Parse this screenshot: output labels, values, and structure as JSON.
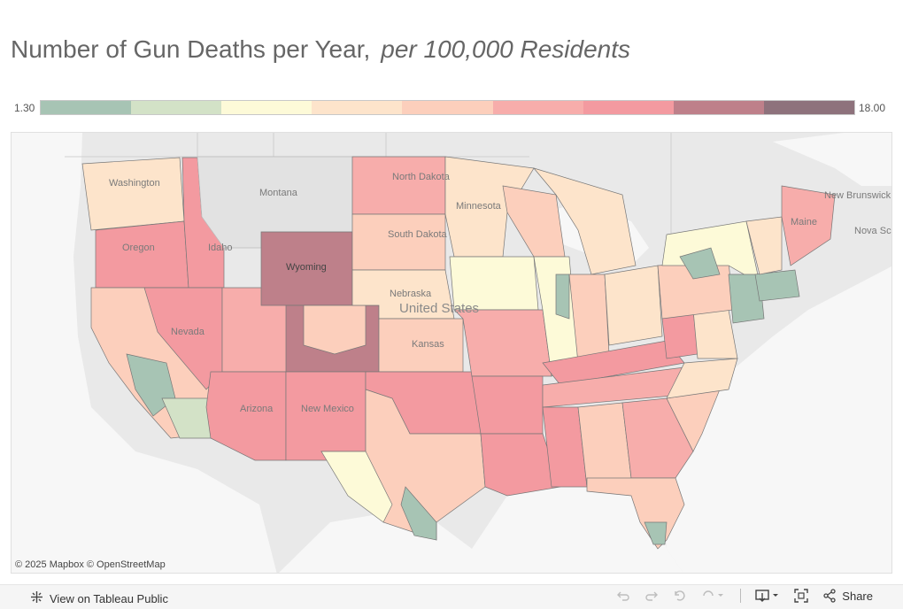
{
  "title": {
    "main": "Number of Gun Deaths per Year,",
    "sub": "per 100,000 Residents"
  },
  "legend": {
    "min_label": "1.30",
    "max_label": "18.00",
    "colors": [
      "#a7c4b4",
      "#d3e2c7",
      "#fdfad8",
      "#fde4cb",
      "#fccfbc",
      "#f7adab",
      "#f39aa0",
      "#be808a",
      "#8e727c"
    ]
  },
  "map": {
    "place_labels": [
      "Montana",
      "North Dakota",
      "South Dakota",
      "Minnesota",
      "Wyoming",
      "Nebraska",
      "United States",
      "Kansas",
      "Oregon",
      "Idaho",
      "Nevada",
      "Arizona",
      "New Mexico",
      "Washington",
      "Maine",
      "New Brunswick",
      "Nova Scotia"
    ],
    "attribution": "© 2025 Mapbox  © OpenStreetMap"
  },
  "toolbar": {
    "view_label": "View on Tableau Public",
    "share_label": "Share"
  }
}
